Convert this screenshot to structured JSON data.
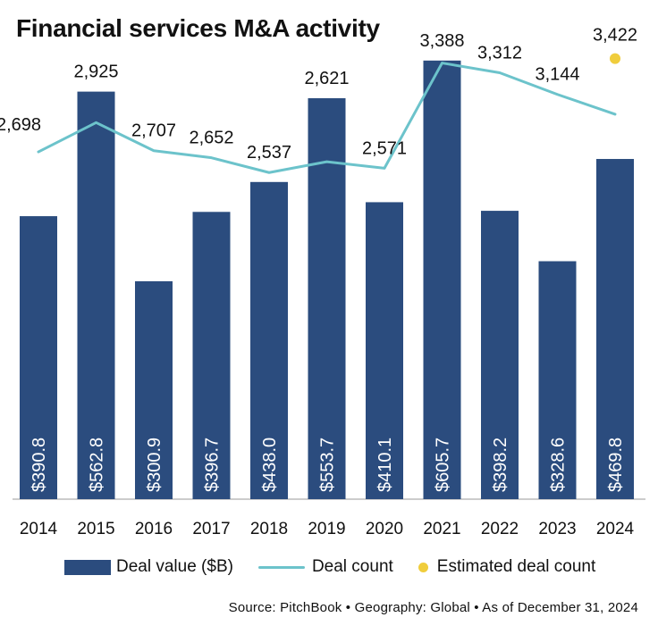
{
  "chart_data": {
    "type": "bar",
    "title": "Financial services M&A activity",
    "categories": [
      "2014",
      "2015",
      "2016",
      "2017",
      "2018",
      "2019",
      "2020",
      "2021",
      "2022",
      "2023",
      "2024"
    ],
    "series": [
      {
        "name": "Deal value ($B)",
        "type": "bar",
        "axis": "left",
        "values": [
          390.8,
          562.8,
          300.9,
          396.7,
          438.0,
          553.7,
          410.1,
          605.7,
          398.2,
          328.6,
          469.8
        ],
        "labels": [
          "$390.8",
          "$562.8",
          "$300.9",
          "$396.7",
          "$438.0",
          "$553.7",
          "$410.1",
          "$605.7",
          "$398.2",
          "$328.6",
          "$469.8"
        ]
      },
      {
        "name": "Deal count",
        "type": "line",
        "axis": "right",
        "values": [
          2698,
          2925,
          2707,
          2652,
          2537,
          2621,
          2571,
          3388,
          3312,
          3144,
          2990
        ],
        "labels": [
          "2,698",
          "2,925",
          "2,707",
          "2,652",
          "2,537",
          "2,621",
          "2,571",
          "3,388",
          "3,312",
          "3,144",
          ""
        ]
      },
      {
        "name": "Estimated deal count",
        "type": "point",
        "axis": "right",
        "values": [
          null,
          null,
          null,
          null,
          null,
          null,
          null,
          null,
          null,
          null,
          3422
        ],
        "labels": [
          "",
          "",
          "",
          "",
          "",
          "",
          "",
          "",
          "",
          "",
          "3,422"
        ]
      }
    ],
    "left_axis_range": [
      0,
      640
    ],
    "right_axis_range": [
      0,
      3600
    ],
    "grid": false,
    "legend_position": "bottom",
    "colors": {
      "bar": "#2b4c7e",
      "line": "#6cc3cb",
      "estimate": "#f0cd3c"
    }
  },
  "source_text": "Source: PitchBook  •  Geography: Global  •  As of December 31, 2024"
}
